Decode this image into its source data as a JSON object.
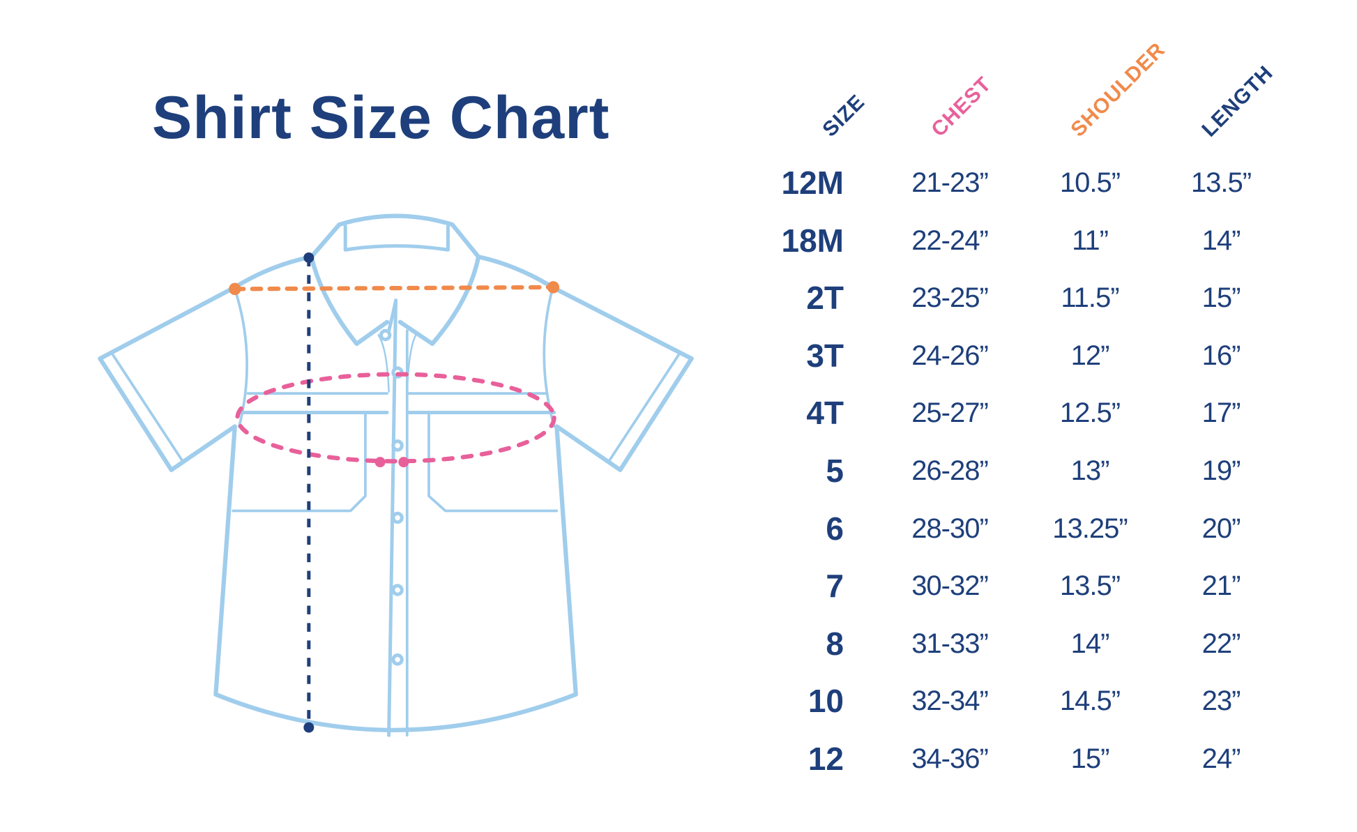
{
  "title": "Shirt Size Chart",
  "colors": {
    "navy": "#1e3f7b",
    "chest": "#e8609a",
    "shoulder": "#f08a4b",
    "length": "#1e3f7b",
    "shirt_outline": "#a0cdec"
  },
  "headers": {
    "size": "SIZE",
    "chest": "CHEST",
    "shoulder": "SHOULDER",
    "length": "LENGTH"
  },
  "rows": [
    {
      "size": "12M",
      "chest": "21-23”",
      "shoulder": "10.5”",
      "length": "13.5”"
    },
    {
      "size": "18M",
      "chest": "22-24”",
      "shoulder": "11”",
      "length": "14”"
    },
    {
      "size": "2T",
      "chest": "23-25”",
      "shoulder": "11.5”",
      "length": "15”"
    },
    {
      "size": "3T",
      "chest": "24-26”",
      "shoulder": "12”",
      "length": "16”"
    },
    {
      "size": "4T",
      "chest": "25-27”",
      "shoulder": "12.5”",
      "length": "17”"
    },
    {
      "size": "5",
      "chest": "26-28”",
      "shoulder": "13”",
      "length": "19”"
    },
    {
      "size": "6",
      "chest": "28-30”",
      "shoulder": "13.25”",
      "length": "20”"
    },
    {
      "size": "7",
      "chest": "30-32”",
      "shoulder": "13.5”",
      "length": "21”"
    },
    {
      "size": "8",
      "chest": "31-33”",
      "shoulder": "14”",
      "length": "22”"
    },
    {
      "size": "10",
      "chest": "32-34”",
      "shoulder": "14.5”",
      "length": "23”"
    },
    {
      "size": "12",
      "chest": "34-36”",
      "shoulder": "15”",
      "length": "24”"
    }
  ]
}
